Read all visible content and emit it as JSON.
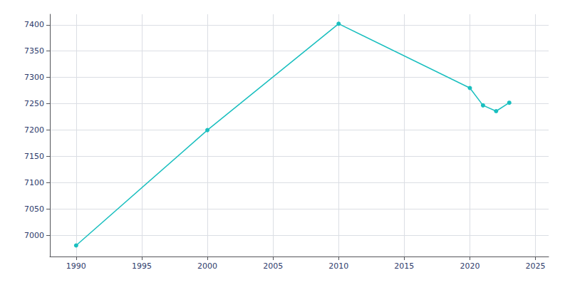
{
  "chart_data": {
    "type": "line",
    "x": [
      1990,
      2000,
      2010,
      2020,
      2021,
      2022,
      2023
    ],
    "values": [
      6981,
      7200,
      7402,
      7280,
      7247,
      7236,
      7252
    ],
    "color": "#1abfbf",
    "marker": "circle",
    "xlim": [
      1988,
      2026
    ],
    "ylim": [
      6960,
      7420
    ],
    "xticks": [
      1990,
      1995,
      2000,
      2005,
      2010,
      2015,
      2020,
      2025
    ],
    "yticks": [
      7000,
      7050,
      7100,
      7150,
      7200,
      7250,
      7300,
      7350,
      7400
    ],
    "grid": true
  }
}
